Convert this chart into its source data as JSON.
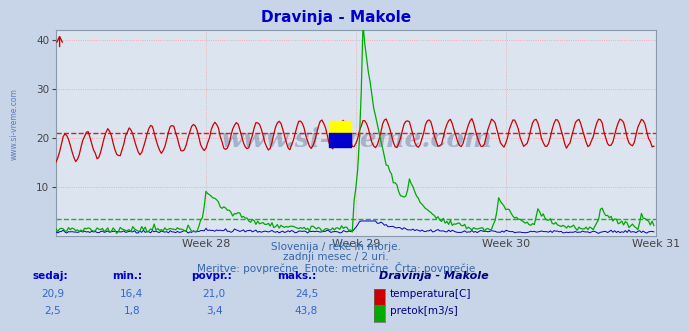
{
  "title": "Dravinja - Makole",
  "title_color": "#0000cc",
  "bg_color": "#c8d4e8",
  "plot_bg_color": "#dce4f0",
  "grid_color_h": "#ff9999",
  "grid_color_v": "#ddaaaa",
  "temp_color": "#cc0000",
  "flow_color": "#00aa00",
  "level_color": "#0000cc",
  "avg_temp": 21.0,
  "avg_flow": 3.4,
  "temp_min": 16.4,
  "temp_max": 24.5,
  "temp_current": 20.9,
  "temp_avg": 21.0,
  "flow_min": 1.8,
  "flow_max": 43.8,
  "flow_current": 2.5,
  "flow_avg": 3.4,
  "subtitle1": "Slovenija / reke in morje.",
  "subtitle2": "zadnji mesec / 2 uri.",
  "subtitle3": "Meritve: povprečne  Enote: metrične  Črta: povprečje",
  "subtitle_color": "#3366aa",
  "watermark": "www.si-vreme.com",
  "watermark_color": "#3a5a8a",
  "legend_title": "Dravinja - Makole",
  "legend_color": "#000080",
  "table_header_color": "#0000cc",
  "table_value_color": "#3366cc",
  "week_labels": [
    "Week 28",
    "Week 29",
    "Week 30",
    "Week 31"
  ],
  "ylim": [
    0,
    42
  ],
  "yticks": [
    10,
    20,
    30,
    40
  ]
}
